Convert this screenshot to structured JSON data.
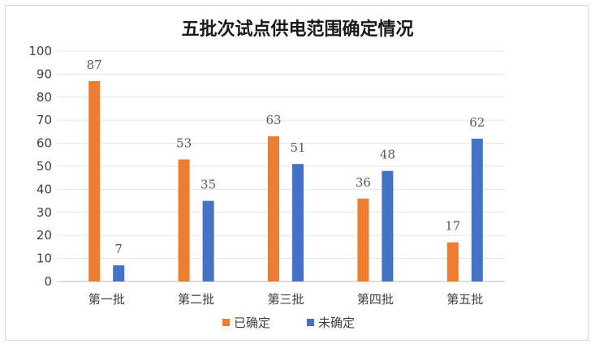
{
  "chart_data": {
    "type": "bar",
    "title": "五批次试点供电范围确定情况",
    "categories": [
      "第一批",
      "第二批",
      "第三批",
      "第四批",
      "第五批"
    ],
    "series": [
      {
        "name": "已确定",
        "values": [
          87,
          53,
          63,
          36,
          17
        ],
        "color": "#ED7D31"
      },
      {
        "name": "未确定",
        "values": [
          7,
          35,
          51,
          48,
          62
        ],
        "color": "#4472C4"
      }
    ],
    "ylim": [
      0,
      100
    ],
    "yticks": [
      0,
      10,
      20,
      30,
      40,
      50,
      60,
      70,
      80,
      90,
      100
    ],
    "grid": true,
    "legend_position": "bottom",
    "data_labels": true
  }
}
